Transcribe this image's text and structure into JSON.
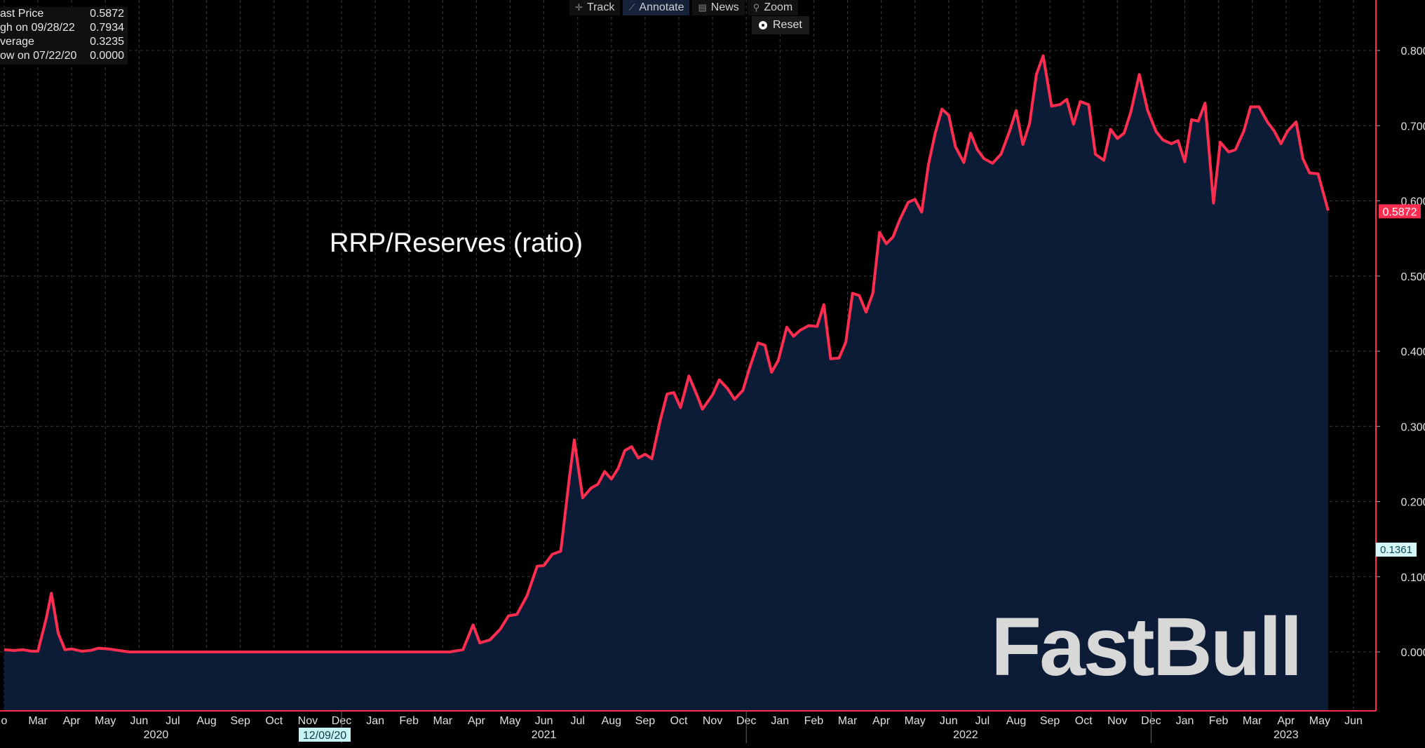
{
  "toolbar": {
    "track_label": "Track",
    "annotate_label": "Annotate",
    "news_label": "News",
    "zoom_label": "Zoom",
    "reset_label": "Reset"
  },
  "stats": {
    "last_price_label": "ast Price",
    "last_price_value": "0.5872",
    "high_label": "gh on 09/28/22",
    "high_value": "0.7934",
    "average_label": "verage",
    "average_value": "0.3235",
    "low_label": "ow on 07/22/20",
    "low_value": "0.0000"
  },
  "annotation_text": "RRP/Reserves (ratio)",
  "watermark": "FastBull",
  "colors": {
    "line": "#ff2d4f",
    "area": "#0c1c36",
    "background": "#000000",
    "grid": "#3a3a3a",
    "last_badge": "#ff2d4f",
    "avg_badge": "#d6f5f5"
  },
  "chart_data": {
    "type": "area",
    "title": "",
    "xlabel": "",
    "ylabel": "",
    "ylim": [
      -0.08,
      0.86
    ],
    "yticks": [
      "0.0000",
      "0.1000",
      "0.2000",
      "0.3000",
      "0.4000",
      "0.5000",
      "0.6000",
      "0.7000",
      "0.8000"
    ],
    "last_value_label": "0.5872",
    "secondary_label": "0.1361",
    "cursor_date_label": "12/09/20",
    "x_month_labels": [
      {
        "label": "o",
        "t": 0.0
      },
      {
        "label": "Mar",
        "t": 1.0
      },
      {
        "label": "Apr",
        "t": 2.0
      },
      {
        "label": "May",
        "t": 3.0
      },
      {
        "label": "Jun",
        "t": 4.0
      },
      {
        "label": "Jul",
        "t": 5.0
      },
      {
        "label": "Aug",
        "t": 6.0
      },
      {
        "label": "Sep",
        "t": 7.0
      },
      {
        "label": "Oct",
        "t": 8.0
      },
      {
        "label": "Nov",
        "t": 9.0
      },
      {
        "label": "Dec",
        "t": 10.0
      },
      {
        "label": "Jan",
        "t": 11.0
      },
      {
        "label": "Feb",
        "t": 12.0
      },
      {
        "label": "Mar",
        "t": 13.0
      },
      {
        "label": "Apr",
        "t": 14.0
      },
      {
        "label": "May",
        "t": 15.0
      },
      {
        "label": "Jun",
        "t": 16.0
      },
      {
        "label": "Jul",
        "t": 17.0
      },
      {
        "label": "Aug",
        "t": 18.0
      },
      {
        "label": "Sep",
        "t": 19.0
      },
      {
        "label": "Oct",
        "t": 20.0
      },
      {
        "label": "Nov",
        "t": 21.0
      },
      {
        "label": "Dec",
        "t": 22.0
      },
      {
        "label": "Jan",
        "t": 23.0
      },
      {
        "label": "Feb",
        "t": 24.0
      },
      {
        "label": "Mar",
        "t": 25.0
      },
      {
        "label": "Apr",
        "t": 26.0
      },
      {
        "label": "May",
        "t": 27.0
      },
      {
        "label": "Jun",
        "t": 28.0
      },
      {
        "label": "Jul",
        "t": 29.0
      },
      {
        "label": "Aug",
        "t": 30.0
      },
      {
        "label": "Sep",
        "t": 31.0
      },
      {
        "label": "Oct",
        "t": 32.0
      },
      {
        "label": "Nov",
        "t": 33.0
      },
      {
        "label": "Dec",
        "t": 34.0
      },
      {
        "label": "Jan",
        "t": 35.0
      },
      {
        "label": "Feb",
        "t": 36.0
      },
      {
        "label": "Mar",
        "t": 37.0
      },
      {
        "label": "Apr",
        "t": 38.0
      },
      {
        "label": "May",
        "t": 39.0
      },
      {
        "label": "Jun",
        "t": 40.0
      }
    ],
    "x_year_labels": [
      {
        "label": "2020",
        "t": 4.5
      },
      {
        "label": "2021",
        "t": 16.0
      },
      {
        "label": "2022",
        "t": 28.5
      },
      {
        "label": "2023",
        "t": 38.0
      }
    ],
    "series": [
      {
        "points": [
          [
            0.0,
            0.003
          ],
          [
            0.3,
            0.002
          ],
          [
            0.55,
            0.003
          ],
          [
            0.8,
            0.001
          ],
          [
            1.0,
            0.001
          ],
          [
            1.25,
            0.045
          ],
          [
            1.4,
            0.078
          ],
          [
            1.6,
            0.025
          ],
          [
            1.8,
            0.003
          ],
          [
            2.0,
            0.004
          ],
          [
            2.3,
            0.001
          ],
          [
            2.55,
            0.002
          ],
          [
            2.8,
            0.005
          ],
          [
            3.1,
            0.004
          ],
          [
            3.4,
            0.002
          ],
          [
            3.7,
            0.0
          ],
          [
            4.0,
            0.0
          ],
          [
            6.0,
            0.0
          ],
          [
            8.0,
            0.0
          ],
          [
            10.0,
            0.0
          ],
          [
            12.0,
            0.0
          ],
          [
            13.2,
            0.0
          ],
          [
            13.6,
            0.003
          ],
          [
            13.9,
            0.036
          ],
          [
            14.1,
            0.012
          ],
          [
            14.4,
            0.016
          ],
          [
            14.7,
            0.03
          ],
          [
            14.95,
            0.048
          ],
          [
            15.2,
            0.05
          ],
          [
            15.5,
            0.075
          ],
          [
            15.8,
            0.114
          ],
          [
            16.0,
            0.115
          ],
          [
            16.25,
            0.13
          ],
          [
            16.5,
            0.134
          ],
          [
            16.75,
            0.23
          ],
          [
            16.9,
            0.282
          ],
          [
            17.15,
            0.205
          ],
          [
            17.4,
            0.218
          ],
          [
            17.6,
            0.223
          ],
          [
            17.8,
            0.24
          ],
          [
            18.0,
            0.23
          ],
          [
            18.2,
            0.244
          ],
          [
            18.4,
            0.268
          ],
          [
            18.6,
            0.273
          ],
          [
            18.8,
            0.258
          ],
          [
            19.0,
            0.263
          ],
          [
            19.2,
            0.257
          ],
          [
            19.45,
            0.308
          ],
          [
            19.65,
            0.343
          ],
          [
            19.85,
            0.345
          ],
          [
            20.05,
            0.325
          ],
          [
            20.3,
            0.367
          ],
          [
            20.55,
            0.34
          ],
          [
            20.7,
            0.323
          ],
          [
            21.0,
            0.342
          ],
          [
            21.2,
            0.362
          ],
          [
            21.45,
            0.35
          ],
          [
            21.65,
            0.336
          ],
          [
            21.9,
            0.348
          ],
          [
            22.1,
            0.378
          ],
          [
            22.35,
            0.411
          ],
          [
            22.55,
            0.408
          ],
          [
            22.75,
            0.372
          ],
          [
            22.95,
            0.388
          ],
          [
            23.2,
            0.432
          ],
          [
            23.4,
            0.42
          ],
          [
            23.6,
            0.428
          ],
          [
            23.85,
            0.434
          ],
          [
            24.1,
            0.433
          ],
          [
            24.3,
            0.462
          ],
          [
            24.5,
            0.39
          ],
          [
            24.75,
            0.391
          ],
          [
            24.95,
            0.412
          ],
          [
            25.15,
            0.477
          ],
          [
            25.35,
            0.474
          ],
          [
            25.55,
            0.452
          ],
          [
            25.75,
            0.477
          ],
          [
            25.95,
            0.558
          ],
          [
            26.15,
            0.543
          ],
          [
            26.35,
            0.552
          ],
          [
            26.55,
            0.575
          ],
          [
            26.8,
            0.598
          ],
          [
            27.0,
            0.602
          ],
          [
            27.2,
            0.585
          ],
          [
            27.4,
            0.648
          ],
          [
            27.6,
            0.69
          ],
          [
            27.8,
            0.722
          ],
          [
            28.0,
            0.714
          ],
          [
            28.2,
            0.672
          ],
          [
            28.45,
            0.651
          ],
          [
            28.65,
            0.69
          ],
          [
            28.85,
            0.668
          ],
          [
            29.05,
            0.656
          ],
          [
            29.3,
            0.65
          ],
          [
            29.55,
            0.662
          ],
          [
            29.8,
            0.692
          ],
          [
            30.0,
            0.72
          ],
          [
            30.2,
            0.675
          ],
          [
            30.4,
            0.703
          ],
          [
            30.6,
            0.768
          ],
          [
            30.8,
            0.793
          ],
          [
            31.05,
            0.726
          ],
          [
            31.3,
            0.728
          ],
          [
            31.5,
            0.735
          ],
          [
            31.7,
            0.702
          ],
          [
            31.9,
            0.732
          ],
          [
            32.15,
            0.728
          ],
          [
            32.35,
            0.662
          ],
          [
            32.6,
            0.654
          ],
          [
            32.8,
            0.695
          ],
          [
            33.0,
            0.683
          ],
          [
            33.2,
            0.69
          ],
          [
            33.4,
            0.718
          ],
          [
            33.65,
            0.768
          ],
          [
            33.9,
            0.72
          ],
          [
            34.15,
            0.692
          ],
          [
            34.35,
            0.681
          ],
          [
            34.6,
            0.676
          ],
          [
            34.8,
            0.68
          ],
          [
            35.0,
            0.652
          ],
          [
            35.2,
            0.708
          ],
          [
            35.4,
            0.706
          ],
          [
            35.6,
            0.73
          ],
          [
            35.85,
            0.597
          ],
          [
            36.05,
            0.678
          ],
          [
            36.3,
            0.665
          ],
          [
            36.5,
            0.668
          ],
          [
            36.75,
            0.693
          ],
          [
            36.95,
            0.725
          ],
          [
            37.2,
            0.725
          ],
          [
            37.45,
            0.705
          ],
          [
            37.65,
            0.693
          ],
          [
            37.85,
            0.676
          ],
          [
            38.05,
            0.693
          ],
          [
            38.3,
            0.705
          ],
          [
            38.5,
            0.656
          ],
          [
            38.7,
            0.637
          ],
          [
            38.95,
            0.636
          ],
          [
            39.25,
            0.587
          ]
        ]
      }
    ]
  }
}
